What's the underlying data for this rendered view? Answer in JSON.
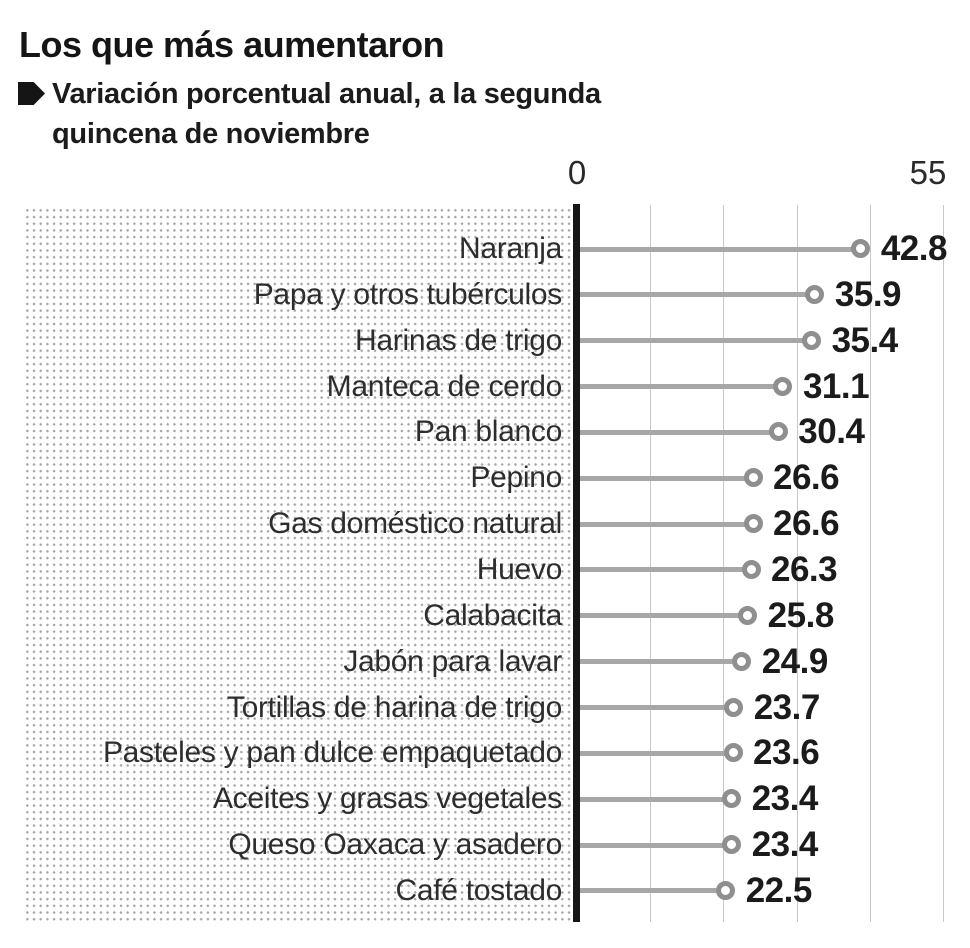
{
  "header": {
    "title": "Los que más aumentaron",
    "subtitle": "Variación porcentual anual, a la segunda quincena de noviembre"
  },
  "chart_data": {
    "type": "bar",
    "subtype": "horizontal-lollipop",
    "title": "Los que más aumentaron",
    "subtitle": "Variación porcentual anual, a la segunda quincena de noviembre",
    "categories": [
      "Naranja",
      "Papa y otros tubérculos",
      "Harinas de trigo",
      "Manteca de cerdo",
      "Pan blanco",
      "Pepino",
      "Gas doméstico natural",
      "Huevo",
      "Calabacita",
      "Jabón para lavar",
      "Tortillas de harina de trigo",
      "Pasteles y pan dulce empaquetado",
      "Aceites y grasas vegetales",
      "Queso Oaxaca y asadero",
      "Café tostado"
    ],
    "values": [
      42.8,
      35.9,
      35.4,
      31.1,
      30.4,
      26.6,
      26.6,
      26.3,
      25.8,
      24.9,
      23.7,
      23.6,
      23.4,
      23.4,
      22.5
    ],
    "xlim": [
      0,
      55
    ],
    "axis_tick_labels": [
      "0",
      "55"
    ],
    "gridline_values": [
      11,
      22,
      33,
      44,
      55
    ],
    "grid": true,
    "legend": false,
    "value_labels_shown": true,
    "colors": {
      "line": "#a7a7a7",
      "circle_stroke": "#8f8f8f",
      "value_text": "#1b1b1b",
      "category_text": "#2d2d2d",
      "axis": "#161616",
      "gridline": "#c8c8c8",
      "dots_pattern": "#a6a6a6",
      "title_text": "#151515"
    }
  }
}
